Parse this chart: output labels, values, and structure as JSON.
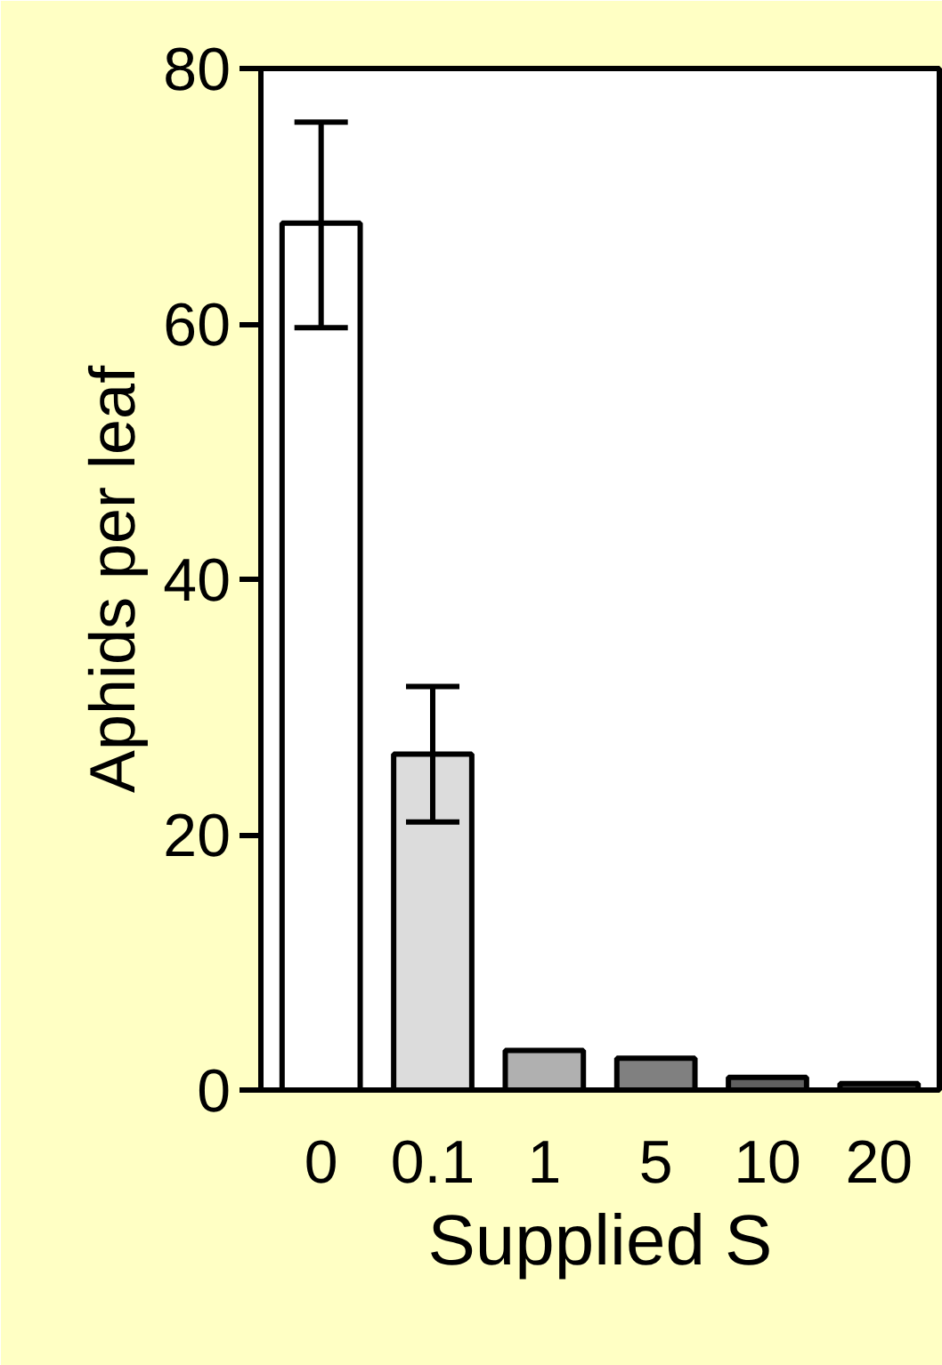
{
  "chart_data": {
    "type": "bar",
    "xlabel": "Supplied S",
    "ylabel": "Aphids per leaf",
    "categories": [
      "0",
      "0.1",
      "1",
      "5",
      "10",
      "20"
    ],
    "values": [
      67.9,
      26.3,
      3.1,
      2.5,
      1.0,
      0.5
    ],
    "colors": [
      "#ffffff",
      "#dcdcdc",
      "#b0b0b0",
      "#808080",
      "#606060",
      "#404040"
    ],
    "errors": [
      [
        59.7,
        75.8
      ],
      [
        21.0,
        31.6
      ],
      null,
      null,
      null,
      null
    ],
    "ylim": [
      0,
      80
    ],
    "yticks": [
      0,
      20,
      40,
      60,
      80
    ],
    "grid": false
  }
}
